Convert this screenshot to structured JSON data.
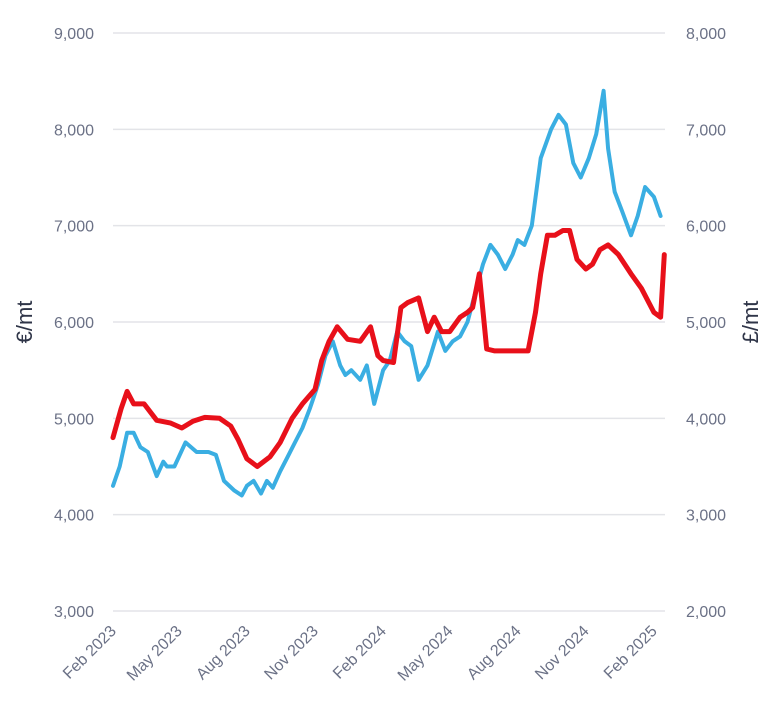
{
  "chart_data": {
    "type": "line",
    "title": "",
    "xlabel": "",
    "ylabel": "€/mt",
    "y2label": "£/mt",
    "ylim": [
      3000,
      9000
    ],
    "y2lim": [
      2000,
      8000
    ],
    "yticks": [
      "3,000",
      "4,000",
      "5,000",
      "6,000",
      "7,000",
      "8,000",
      "9,000"
    ],
    "y2ticks": [
      "2,000",
      "3,000",
      "4,000",
      "5,000",
      "6,000",
      "7,000",
      "8,000"
    ],
    "xticks": [
      "Feb 2023",
      "May 2023",
      "Aug 2023",
      "Nov 2023",
      "Feb 2024",
      "May 2024",
      "Aug 2024",
      "Nov 2024",
      "Feb 2025"
    ],
    "grid": true,
    "legend": "none",
    "series": [
      {
        "axis": "left",
        "color": "#e8101a",
        "x": [
          "2023-02-01",
          "2023-02-12",
          "2023-02-20",
          "2023-03-01",
          "2023-03-15",
          "2023-04-01",
          "2023-04-20",
          "2023-05-05",
          "2023-05-20",
          "2023-06-05",
          "2023-06-25",
          "2023-07-10",
          "2023-07-20",
          "2023-08-01",
          "2023-08-15",
          "2023-09-01",
          "2023-09-15",
          "2023-10-01",
          "2023-10-15",
          "2023-11-01",
          "2023-11-10",
          "2023-11-20",
          "2023-12-01",
          "2023-12-15",
          "2024-01-01",
          "2024-01-15",
          "2024-01-25",
          "2024-02-01",
          "2024-02-15",
          "2024-02-25",
          "2024-03-05",
          "2024-03-20",
          "2024-04-01",
          "2024-04-10",
          "2024-04-20",
          "2024-05-01",
          "2024-05-15",
          "2024-05-25",
          "2024-06-01",
          "2024-06-10",
          "2024-06-20",
          "2024-07-01",
          "2024-07-15",
          "2024-08-01",
          "2024-08-15",
          "2024-08-25",
          "2024-09-01",
          "2024-09-10",
          "2024-09-20",
          "2024-10-01",
          "2024-10-10",
          "2024-10-20",
          "2024-11-01",
          "2024-11-10",
          "2024-11-20",
          "2024-12-01",
          "2024-12-15",
          "2025-01-01",
          "2025-01-15",
          "2025-02-01",
          "2025-02-10",
          "2025-02-15"
        ],
        "values": [
          4800,
          5100,
          5280,
          5150,
          5150,
          4980,
          4950,
          4900,
          4970,
          5010,
          5000,
          4920,
          4780,
          4580,
          4500,
          4600,
          4750,
          5000,
          5150,
          5300,
          5600,
          5800,
          5950,
          5820,
          5800,
          5950,
          5650,
          5600,
          5580,
          6150,
          6200,
          6250,
          5900,
          6050,
          5900,
          5900,
          6050,
          6100,
          6150,
          6500,
          5720,
          5700,
          5700,
          5700,
          5700,
          6100,
          6500,
          6900,
          6900,
          6950,
          6950,
          6650,
          6550,
          6600,
          6750,
          6800,
          6700,
          6500,
          6350,
          6100,
          6050,
          6700
        ]
      },
      {
        "axis": "left",
        "color": "#3aaee2",
        "x": [
          "2023-02-01",
          "2023-02-10",
          "2023-02-20",
          "2023-03-01",
          "2023-03-10",
          "2023-03-20",
          "2023-04-01",
          "2023-04-10",
          "2023-04-15",
          "2023-04-25",
          "2023-05-10",
          "2023-05-25",
          "2023-06-10",
          "2023-06-20",
          "2023-07-01",
          "2023-07-15",
          "2023-07-25",
          "2023-08-01",
          "2023-08-10",
          "2023-08-20",
          "2023-08-28",
          "2023-09-05",
          "2023-09-15",
          "2023-09-25",
          "2023-10-05",
          "2023-10-15",
          "2023-10-25",
          "2023-11-05",
          "2023-11-15",
          "2023-11-25",
          "2023-12-05",
          "2023-12-12",
          "2023-12-20",
          "2024-01-01",
          "2024-01-10",
          "2024-01-20",
          "2024-02-01",
          "2024-02-10",
          "2024-02-20",
          "2024-03-01",
          "2024-03-10",
          "2024-03-20",
          "2024-04-01",
          "2024-04-15",
          "2024-04-25",
          "2024-05-05",
          "2024-05-15",
          "2024-05-25",
          "2024-06-01",
          "2024-06-15",
          "2024-06-25",
          "2024-07-05",
          "2024-07-15",
          "2024-07-25",
          "2024-08-01",
          "2024-08-10",
          "2024-08-20",
          "2024-09-01",
          "2024-09-15",
          "2024-09-25",
          "2024-10-05",
          "2024-10-15",
          "2024-10-25",
          "2024-11-05",
          "2024-11-15",
          "2024-11-25",
          "2024-12-01",
          "2024-12-10",
          "2024-12-20",
          "2025-01-01",
          "2025-01-10",
          "2025-01-20",
          "2025-02-01",
          "2025-02-10"
        ],
        "values": [
          4300,
          4500,
          4850,
          4850,
          4700,
          4650,
          4400,
          4550,
          4500,
          4500,
          4750,
          4650,
          4650,
          4620,
          4350,
          4250,
          4200,
          4300,
          4350,
          4220,
          4350,
          4280,
          4450,
          4600,
          4750,
          4900,
          5100,
          5350,
          5650,
          5800,
          5550,
          5450,
          5500,
          5400,
          5550,
          5150,
          5500,
          5600,
          5900,
          5800,
          5750,
          5400,
          5550,
          5900,
          5700,
          5800,
          5850,
          6000,
          6200,
          6600,
          6800,
          6700,
          6550,
          6700,
          6850,
          6800,
          7000,
          7700,
          8000,
          8150,
          8050,
          7650,
          7500,
          7700,
          7950,
          8400,
          7800,
          7350,
          7150,
          6900,
          7100,
          7400,
          7300,
          7100
        ]
      }
    ]
  }
}
